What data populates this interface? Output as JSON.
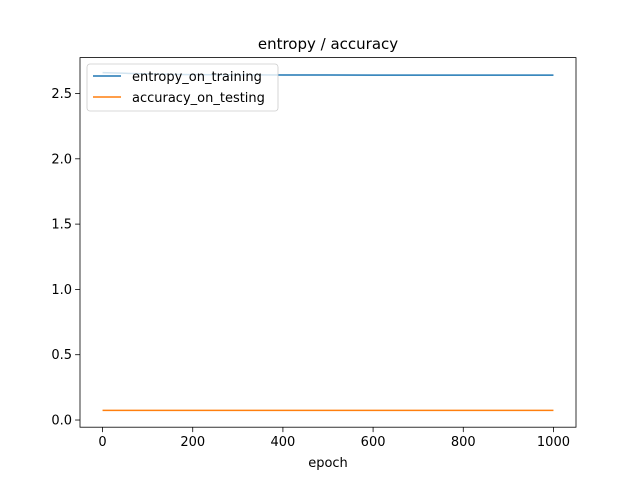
{
  "chart_data": {
    "type": "line",
    "title": "entropy / accuracy",
    "xlabel": "epoch",
    "ylabel": "",
    "xlim": [
      -50,
      1050
    ],
    "ylim": [
      -0.055,
      2.775
    ],
    "xticks": [
      0,
      200,
      400,
      600,
      800,
      1000
    ],
    "xtick_labels": [
      "0",
      "200",
      "400",
      "600",
      "800",
      "1000"
    ],
    "yticks": [
      0.0,
      0.5,
      1.0,
      1.5,
      2.0,
      2.5
    ],
    "ytick_labels": [
      "0.0",
      "0.5",
      "1.0",
      "1.5",
      "2.0",
      "2.5"
    ],
    "grid": false,
    "legend_position": "top-left",
    "series": [
      {
        "name": "entropy_on_training",
        "color": "#1f77b4",
        "x": [
          0,
          50,
          100,
          150,
          200,
          300,
          400,
          500,
          600,
          700,
          800,
          900,
          1000
        ],
        "y": [
          2.66,
          2.655,
          2.65,
          2.647,
          2.645,
          2.643,
          2.642,
          2.642,
          2.641,
          2.641,
          2.641,
          2.641,
          2.641
        ]
      },
      {
        "name": "accuracy_on_testing",
        "color": "#ff7f0e",
        "x": [
          0,
          1000
        ],
        "y": [
          0.074,
          0.074
        ]
      }
    ]
  }
}
